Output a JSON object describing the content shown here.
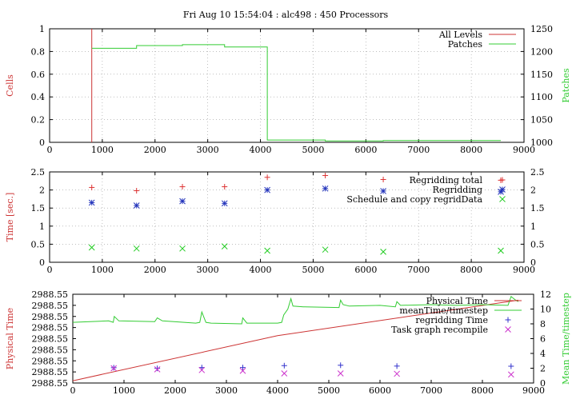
{
  "figure": {
    "title": "Fri Aug 10 15:54:04 : alc498 : 450 Processors"
  },
  "chart_data": [
    {
      "type": "line",
      "xlim": [
        0,
        9000
      ],
      "xticks": [
        "0",
        "1000",
        "2000",
        "3000",
        "4000",
        "5000",
        "6000",
        "7000",
        "8000",
        "9000"
      ],
      "ylabel": "Cells",
      "ylim": [
        0,
        1
      ],
      "yticks": [
        "0",
        "0.2",
        "0.4",
        "0.6",
        "0.8",
        "1"
      ],
      "y2label": "Patches",
      "y2lim": [
        1000,
        1250
      ],
      "y2ticks": [
        "1000",
        "1050",
        "1100",
        "1150",
        "1200",
        "1250"
      ],
      "grid": true,
      "legend": "top-right",
      "series": [
        {
          "name": "All Levels",
          "axis": "left",
          "color": "#cc3333",
          "x": [
            800,
            800
          ],
          "y": [
            0,
            1
          ]
        },
        {
          "name": "Patches",
          "axis": "right",
          "color": "#33cc33",
          "step": true,
          "x": [
            800,
            1650,
            2520,
            3320,
            4130,
            5230,
            6330,
            8560
          ],
          "y": [
            1207,
            1213,
            1215,
            1210,
            1005,
            1003,
            1004,
            1004
          ]
        }
      ]
    },
    {
      "type": "scatter",
      "xlim": [
        0,
        9000
      ],
      "xticks": [
        "0",
        "1000",
        "2000",
        "3000",
        "4000",
        "5000",
        "6000",
        "7000",
        "8000",
        "9000"
      ],
      "ylabel": "Time [sec.]",
      "ylim": [
        0,
        2.5
      ],
      "yticks": [
        "0",
        "0.5",
        "1",
        "1.5",
        "2",
        "2.5"
      ],
      "y2ticks": [
        "0",
        "0.5",
        "1",
        "1.5",
        "2",
        "2.5"
      ],
      "grid": true,
      "legend": "top-right",
      "series": [
        {
          "name": "Regridding total",
          "marker": "plus",
          "color": "#dd3333",
          "x": [
            800,
            1650,
            2520,
            3320,
            4130,
            5230,
            6330,
            8560
          ],
          "y": [
            2.07,
            1.98,
            2.09,
            2.09,
            2.35,
            2.4,
            2.29,
            2.27
          ]
        },
        {
          "name": "Regridding",
          "marker": "star",
          "color": "#2233bb",
          "x": [
            800,
            1650,
            2520,
            3320,
            4130,
            5230,
            6330,
            8560
          ],
          "y": [
            1.65,
            1.57,
            1.69,
            1.63,
            2.0,
            2.04,
            1.97,
            1.95
          ]
        },
        {
          "name": "Schedule and copy regridData",
          "marker": "cross",
          "color": "#22cc22",
          "x": [
            800,
            1650,
            2520,
            3320,
            4130,
            5230,
            6330,
            8560
          ],
          "y": [
            0.41,
            0.38,
            0.38,
            0.44,
            0.32,
            0.35,
            0.29,
            0.32
          ]
        }
      ]
    },
    {
      "type": "line",
      "xlim": [
        0,
        9000
      ],
      "xticks": [
        "0",
        "1000",
        "2000",
        "3000",
        "4000",
        "5000",
        "6000",
        "7000",
        "8000",
        "9000"
      ],
      "ylabel": "Physical Time",
      "yticks": [
        "2988.55",
        "2988.55",
        "2988.55",
        "2988.55",
        "2988.55",
        "2988.55",
        "2988.55",
        "2988.55",
        "2988.55"
      ],
      "y2label": "Mean Time/timestep",
      "y2lim": [
        0,
        12
      ],
      "y2ticks": [
        "0",
        "2",
        "4",
        "6",
        "8",
        "10",
        "12"
      ],
      "grid": false,
      "legend": "top-right",
      "series": [
        {
          "name": "Physical Time",
          "axis": "right",
          "color": "#cc3333",
          "x": [
            0,
            4000,
            8700
          ],
          "y": [
            0.3,
            6.4,
            11.2
          ]
        },
        {
          "name": "meanTime/timestep",
          "axis": "right",
          "color": "#33cc33",
          "x": [
            0,
            700,
            790,
            810,
            900,
            1600,
            1650,
            1750,
            2400,
            2480,
            2520,
            2600,
            2700,
            3300,
            3320,
            3400,
            4000,
            4080,
            4120,
            4200,
            4260,
            4300,
            4500,
            5200,
            5230,
            5280,
            5400,
            6000,
            6300,
            6330,
            6400,
            7000,
            7500,
            8000,
            8500,
            8560,
            8650,
            8700
          ],
          "y": [
            8.2,
            8.4,
            8.2,
            9.0,
            8.4,
            8.3,
            8.8,
            8.4,
            8.1,
            8.2,
            9.6,
            8.2,
            8.1,
            8.0,
            8.8,
            8.1,
            8.1,
            8.2,
            9.2,
            10.0,
            11.4,
            10.4,
            10.3,
            10.2,
            11.2,
            10.6,
            10.4,
            10.5,
            10.3,
            11.0,
            10.5,
            10.6,
            10.5,
            10.6,
            10.5,
            11.7,
            11.2,
            11.0
          ]
        },
        {
          "name": "regridding Time",
          "marker": "plus",
          "axis": "right",
          "color": "#3333cc",
          "x": [
            800,
            1650,
            2520,
            3320,
            4130,
            5230,
            6330,
            8560
          ],
          "y": [
            2.07,
            1.98,
            2.09,
            2.09,
            2.35,
            2.4,
            2.29,
            2.27
          ]
        },
        {
          "name": "Task graph recompile",
          "marker": "cross",
          "axis": "right",
          "color": "#cc33cc",
          "x": [
            800,
            1650,
            2520,
            3320,
            4130,
            5230,
            6330,
            8560
          ],
          "y": [
            2.0,
            1.85,
            1.75,
            1.65,
            1.3,
            1.3,
            1.25,
            1.15
          ]
        }
      ]
    }
  ]
}
